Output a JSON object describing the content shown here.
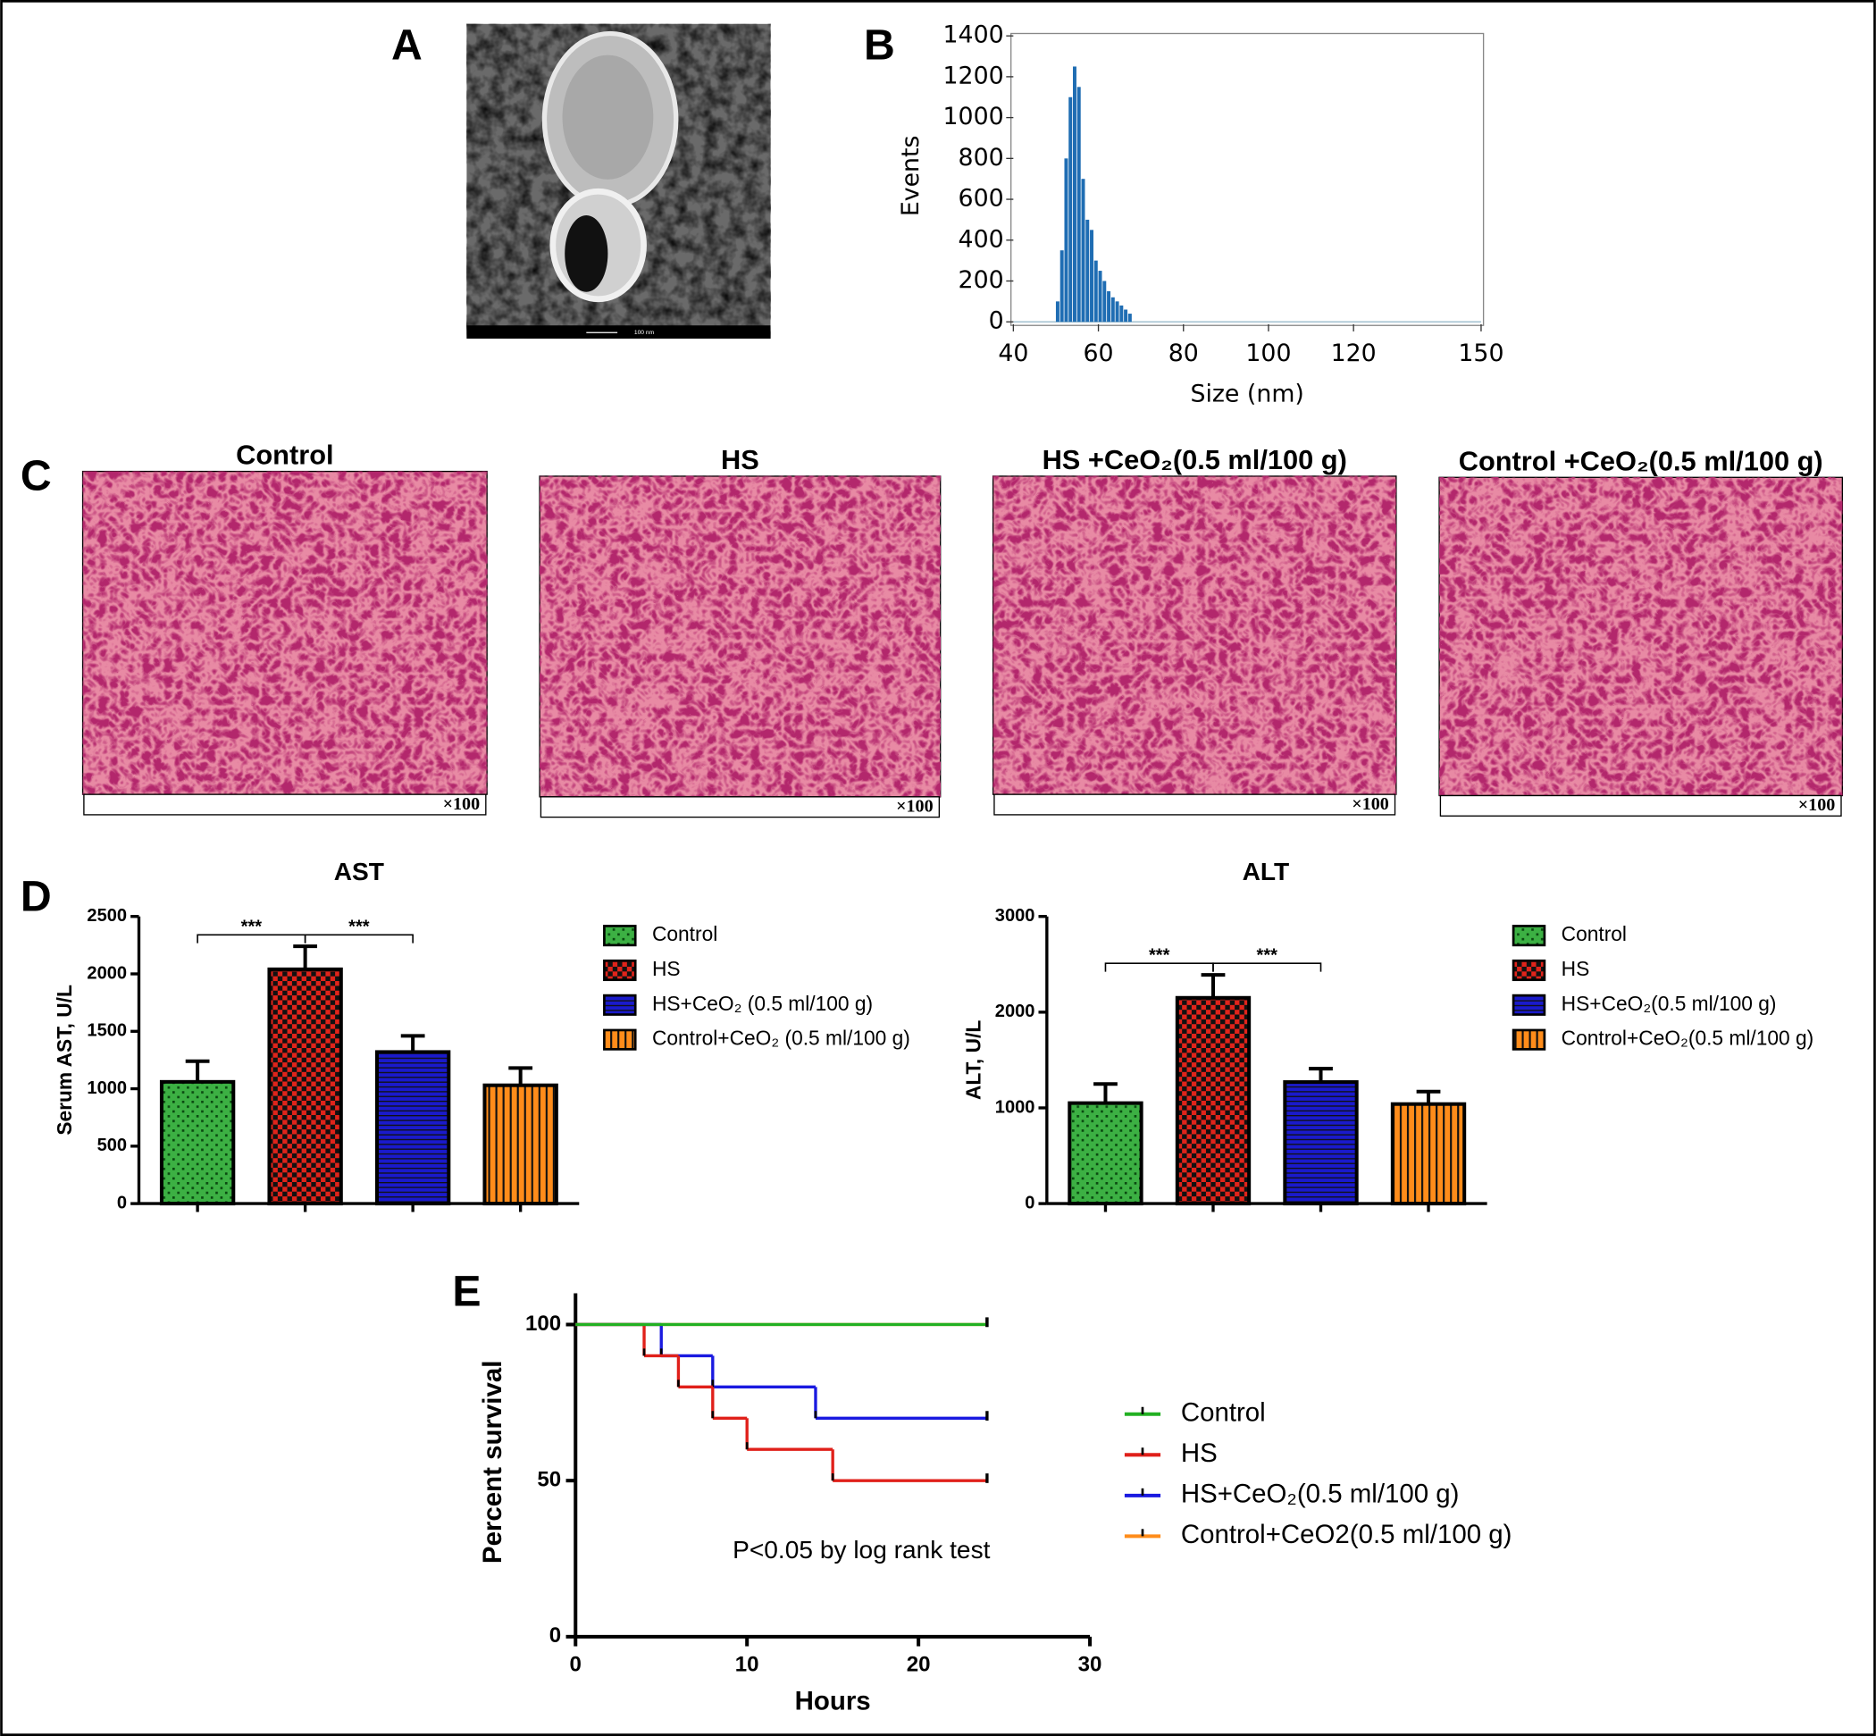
{
  "panel_labels": [
    "A",
    "B",
    "C",
    "D",
    "E"
  ],
  "micrograph": {
    "scale_bar": "100 nm"
  },
  "histology": [
    {
      "title": "Control",
      "magnification": "×100"
    },
    {
      "title": "HS",
      "magnification": "×100"
    },
    {
      "title": "HS +CeO₂(0.5 ml/100 g)",
      "magnification": "×100"
    },
    {
      "title": "Control +CeO₂(0.5 ml/100 g)",
      "magnification": "×100"
    }
  ],
  "chart_data": [
    {
      "type": "histogram",
      "xlabel": "Size (nm)",
      "ylabel": "Events",
      "color": "#1f6db3",
      "bins": [
        50,
        51,
        52,
        53,
        54,
        55,
        56,
        57,
        58,
        59,
        60,
        61,
        62,
        63,
        64,
        65,
        66,
        67,
        68
      ],
      "counts": [
        100,
        350,
        800,
        1100,
        1250,
        1150,
        700,
        500,
        450,
        300,
        250,
        200,
        150,
        120,
        100,
        80,
        60,
        40
      ],
      "xlim": [
        40,
        150
      ],
      "xticks": [
        40,
        60,
        80,
        100,
        120,
        150
      ],
      "ylim": [
        0,
        1400
      ],
      "yticks": [
        0,
        200,
        400,
        600,
        800,
        1000,
        1200,
        1400
      ]
    },
    {
      "type": "bar",
      "title": "AST",
      "ylabel": "Serum AST, U/L",
      "categories": [
        "Control",
        "HS",
        "HS+CeO₂ (0.5 ml/100 g)",
        "Control+CeO₂ (0.5 ml/100 g)"
      ],
      "values": [
        1060,
        2040,
        1320,
        1030
      ],
      "errors": [
        180,
        200,
        140,
        150
      ],
      "colors": [
        "#3cb043",
        "#e0241b",
        "#1a1acc",
        "#ff8c1a"
      ],
      "hatch": [
        "fine-check",
        "check",
        "hlines",
        "vlines"
      ],
      "ylim": [
        0,
        2500
      ],
      "yticks": [
        0,
        500,
        1000,
        1500,
        2000,
        2500
      ],
      "significance": [
        {
          "label": "***",
          "y": 2340
        },
        {
          "label": "***",
          "y": 2340
        }
      ]
    },
    {
      "type": "bar",
      "title": "ALT",
      "ylabel": "ALT, U/L",
      "categories": [
        "Control",
        "HS",
        "HS+CeO₂(0.5 ml/100 g)",
        "Control+CeO₂(0.5 ml/100 g)"
      ],
      "values": [
        1050,
        2150,
        1270,
        1040
      ],
      "errors": [
        200,
        240,
        140,
        130
      ],
      "colors": [
        "#3cb043",
        "#e0241b",
        "#1a1acc",
        "#ff8c1a"
      ],
      "hatch": [
        "fine-check",
        "check",
        "hlines",
        "vlines"
      ],
      "ylim": [
        0,
        3000
      ],
      "yticks": [
        0,
        1000,
        2000,
        3000
      ],
      "significance": [
        {
          "label": "***",
          "y": 2510
        },
        {
          "label": "***",
          "y": 2510
        }
      ]
    },
    {
      "type": "survival",
      "xlabel": "Hours",
      "ylabel": "Percent survival",
      "annotation": "P<0.05 by log rank test",
      "series": [
        {
          "name": "Control",
          "color": "#22b022",
          "x": [
            0,
            24
          ],
          "values": [
            100,
            100
          ]
        },
        {
          "name": "HS",
          "color": "#e0201a",
          "x": [
            0,
            4,
            6,
            8,
            10,
            15,
            24
          ],
          "values": [
            100,
            90,
            80,
            70,
            60,
            50,
            50
          ]
        },
        {
          "name": "HS+CeO₂(0.5 ml/100 g)",
          "color": "#1a1ae0",
          "x": [
            0,
            5,
            8,
            14,
            24
          ],
          "values": [
            100,
            90,
            80,
            70,
            70
          ]
        },
        {
          "name": "Control+CeO2(0.5 ml/100 g)",
          "color": "#ff8c1a",
          "x": [
            0,
            24
          ],
          "values": [
            100,
            100
          ]
        }
      ],
      "xlim": [
        0,
        30
      ],
      "xticks": [
        0,
        10,
        20,
        30
      ],
      "ylim": [
        0,
        110
      ],
      "yticks": [
        0,
        50,
        100
      ]
    }
  ]
}
